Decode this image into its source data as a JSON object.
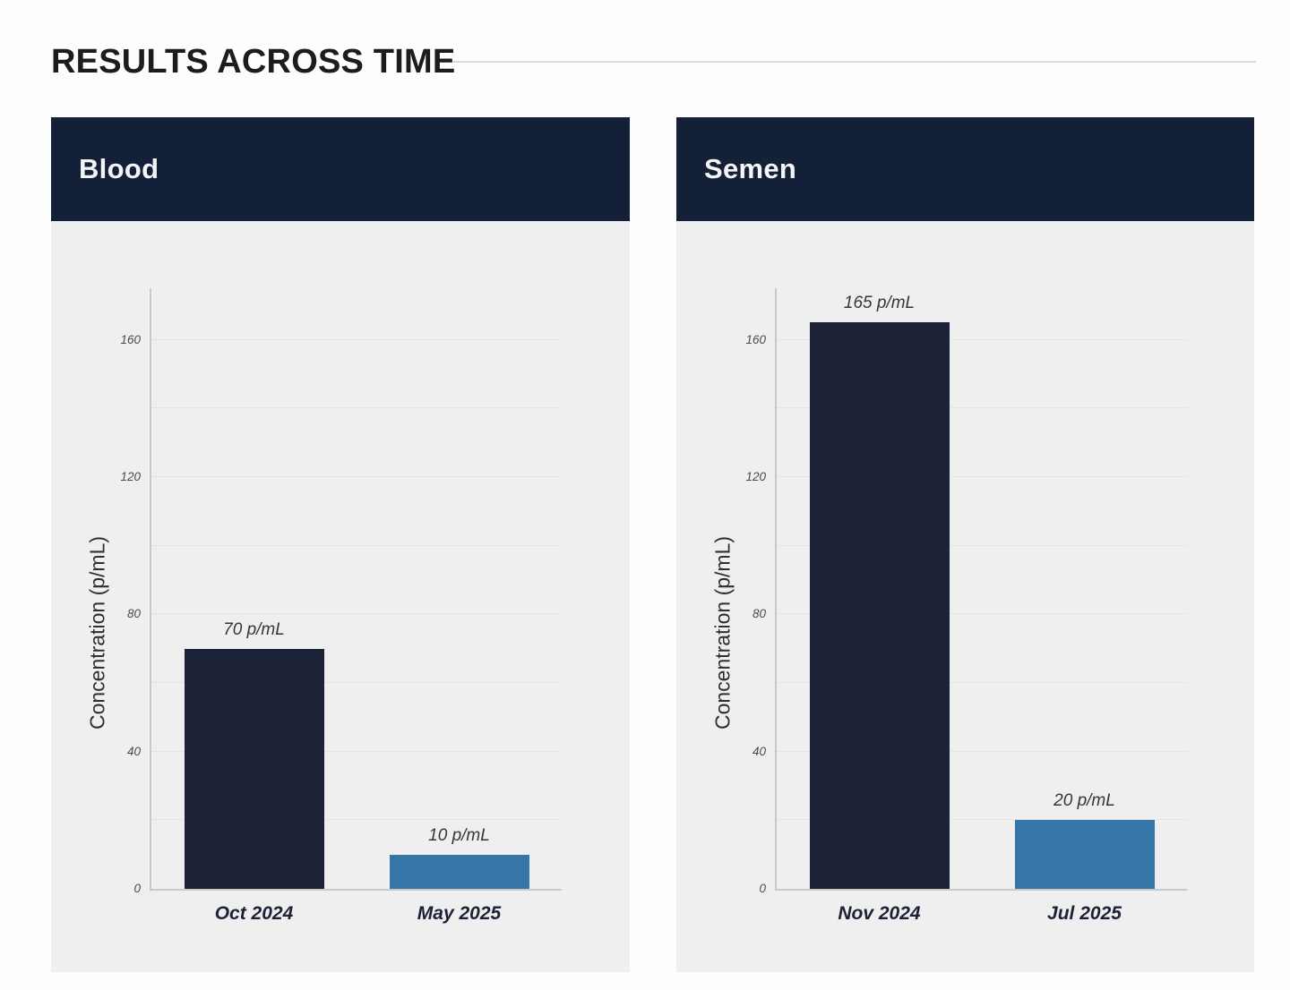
{
  "page_title": "RESULTS ACROSS TIME",
  "colors": {
    "header_navy": "#142038",
    "bar_dark": "#1b2238",
    "bar_blue": "#3576a6",
    "panel_bg": "#efeff0",
    "gridline": "#e4e4e4",
    "axis": "#c9c9c9"
  },
  "chart_data": [
    {
      "type": "bar",
      "title": "Blood",
      "categories": [
        "Oct 2024",
        "May 2025"
      ],
      "values": [
        70,
        10
      ],
      "value_labels": [
        "70 p/mL",
        "10 p/mL"
      ],
      "bar_colors": [
        "#1b2238",
        "#3576a6"
      ],
      "xlabel": "",
      "ylabel": "Concentration (p/mL)",
      "ylim": [
        0,
        175
      ],
      "yticks": [
        0,
        40,
        80,
        120,
        160
      ],
      "grid_step": 20,
      "grid": true,
      "legend": false
    },
    {
      "type": "bar",
      "title": "Semen",
      "categories": [
        "Nov 2024",
        "Jul 2025"
      ],
      "values": [
        165,
        20
      ],
      "value_labels": [
        "165 p/mL",
        "20 p/mL"
      ],
      "bar_colors": [
        "#1b2238",
        "#3576a6"
      ],
      "xlabel": "",
      "ylabel": "Concentration (p/mL)",
      "ylim": [
        0,
        175
      ],
      "yticks": [
        0,
        40,
        80,
        120,
        160
      ],
      "grid_step": 20,
      "grid": true,
      "legend": false
    }
  ]
}
